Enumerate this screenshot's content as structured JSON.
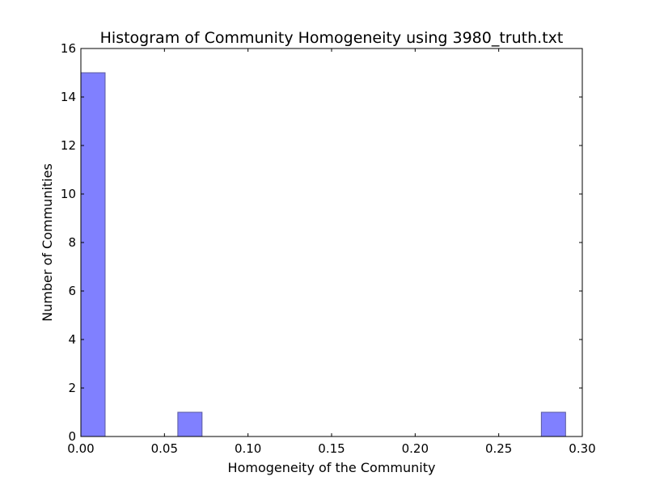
{
  "chart_data": {
    "type": "bar",
    "title": "Histogram of Community Homogeneity using 3980_truth.txt",
    "xlabel": "Homogeneity of the Community",
    "ylabel": "Number of Communities",
    "xlim": [
      0.0,
      0.3
    ],
    "ylim": [
      0,
      16
    ],
    "x_ticks": [
      "0.00",
      "0.05",
      "0.10",
      "0.15",
      "0.20",
      "0.25",
      "0.30"
    ],
    "y_ticks": [
      "0",
      "2",
      "4",
      "6",
      "8",
      "10",
      "12",
      "14",
      "16"
    ],
    "bins": [
      {
        "x0": 0.0,
        "x1": 0.0145,
        "count": 15
      },
      {
        "x0": 0.058,
        "x1": 0.0725,
        "count": 1
      },
      {
        "x0": 0.2755,
        "x1": 0.29,
        "count": 1
      }
    ],
    "bar_color": "#8080ff",
    "bar_edge_color": "#5a5a9c",
    "grid": false,
    "legend": "none"
  }
}
